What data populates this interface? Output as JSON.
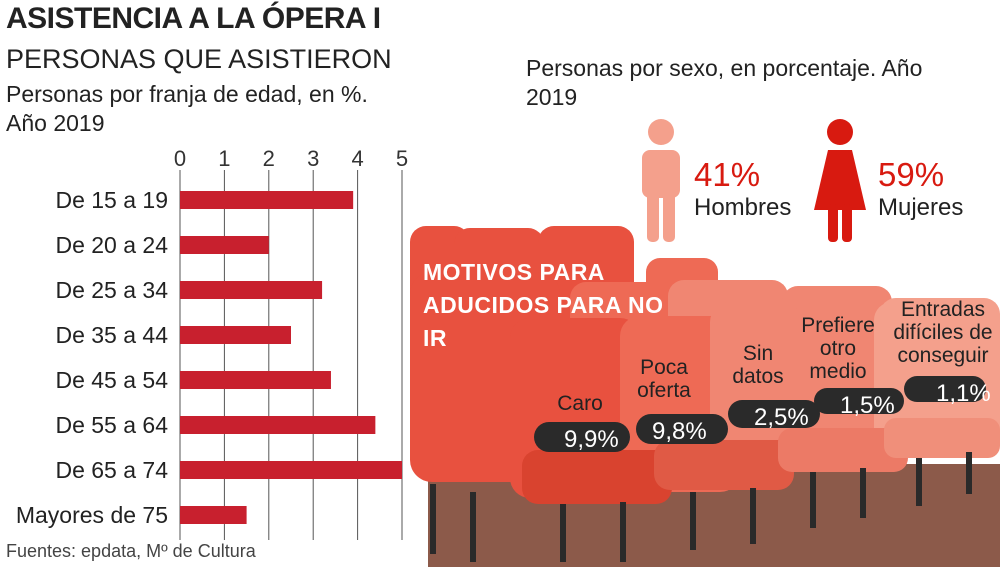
{
  "header": {
    "title": "ASISTENCIA A LA ÓPERA I",
    "section_title": "PERSONAS QUE ASISTIERON",
    "subtitle": "Personas por franja de edad, en %. Año 2019"
  },
  "sex": {
    "subtitle": "Personas por sexo, en porcentaje. Año 2019",
    "men_pct": "41%",
    "men_label": "Hombres",
    "women_pct": "59%",
    "women_label": "Mujeres",
    "men_color": "#f4a08c",
    "women_color": "#d81a10"
  },
  "reasons": {
    "title": "MOTIVOS PARA ADUCIDOS PARA NO IR",
    "items": [
      {
        "label": "Caro",
        "value": "9,9%"
      },
      {
        "label": "Poca oferta",
        "value": "9,8%"
      },
      {
        "label": "Sin datos",
        "value": "2,5%"
      },
      {
        "label": "Prefiere otro medio",
        "value": "1,5%"
      },
      {
        "label": "Entradas difíciles de conseguir",
        "value": "1,1%"
      }
    ]
  },
  "footer": {
    "source": "Fuentes: epdata, Mº de Cultura"
  },
  "colors": {
    "bar": "#c8202e",
    "seat": "#e8513f",
    "seat_light": "#f08672",
    "floor": "#8c5a4a"
  },
  "chart_data": {
    "type": "bar",
    "orientation": "horizontal",
    "title": "PERSONAS QUE ASISTIERON",
    "subtitle": "Personas por franja de edad, en %. Año 2019",
    "categories": [
      "De 15 a 19",
      "De 20 a 24",
      "De 25 a 34",
      "De 35 a 44",
      "De 45 a 54",
      "De 55 a 64",
      "De 65 a 74",
      "Mayores de 75"
    ],
    "values": [
      3.9,
      2.0,
      3.2,
      2.5,
      3.4,
      4.4,
      5.0,
      1.5
    ],
    "xlim": [
      0,
      5
    ],
    "xticks": [
      0,
      1,
      2,
      3,
      4,
      5
    ],
    "grid": true
  }
}
